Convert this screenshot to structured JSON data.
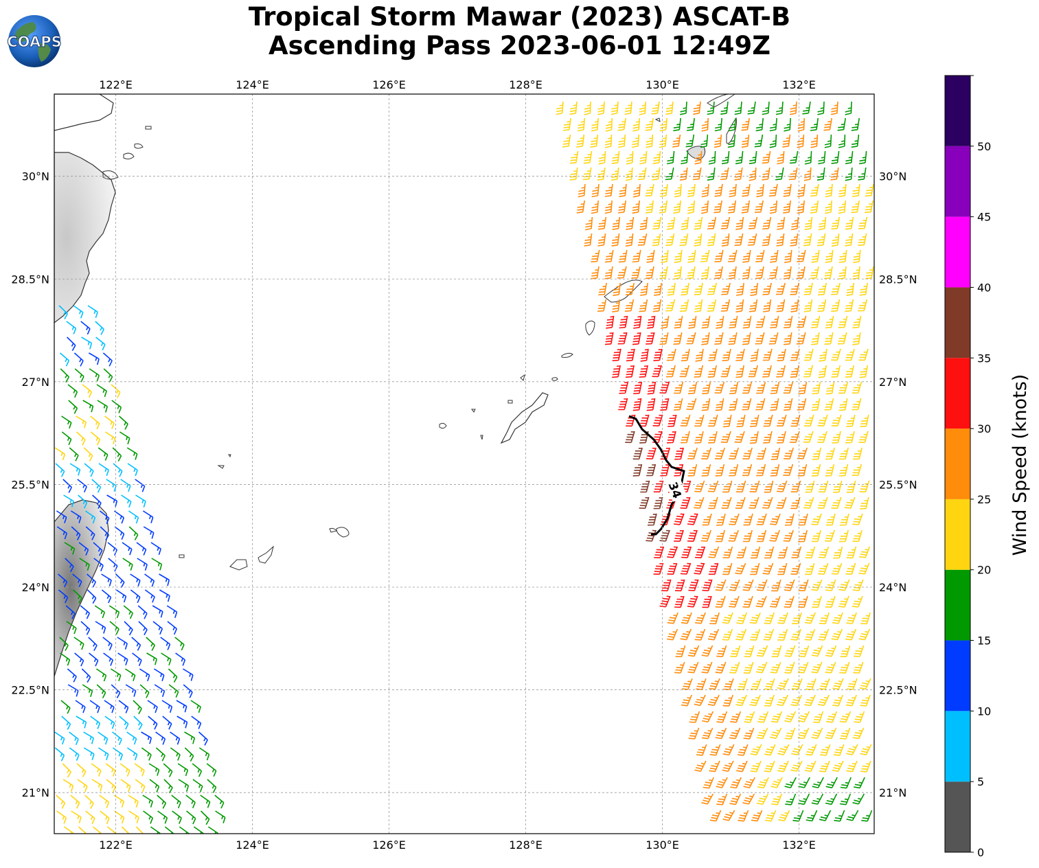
{
  "title": {
    "line1": "Tropical Storm Mawar (2023) ASCAT-B",
    "line2": "Ascending Pass 2023-06-01 12:49Z"
  },
  "logo_text": "COAPS",
  "map": {
    "lon_range": [
      121.1,
      133.1
    ],
    "lat_range": [
      20.4,
      31.2
    ],
    "x_ticks": [
      {
        "lon": 122,
        "label": "122°E"
      },
      {
        "lon": 124,
        "label": "124°E"
      },
      {
        "lon": 126,
        "label": "126°E"
      },
      {
        "lon": 128,
        "label": "128°E"
      },
      {
        "lon": 130,
        "label": "130°E"
      },
      {
        "lon": 132,
        "label": "132°E"
      }
    ],
    "y_ticks": [
      {
        "lat": 30,
        "label": "30°N"
      },
      {
        "lat": 28.5,
        "label": "28.5°N"
      },
      {
        "lat": 27,
        "label": "27°N"
      },
      {
        "lat": 25.5,
        "label": "25.5°N"
      },
      {
        "lat": 24,
        "label": "24°N"
      },
      {
        "lat": 22.5,
        "label": "22.5°N"
      },
      {
        "lat": 21,
        "label": "21°N"
      }
    ],
    "gridlines": true,
    "contour_label": "34",
    "contour_level_kt": 34
  },
  "colorbar": {
    "title": "Wind Speed (knots)",
    "bins": [
      {
        "min": 0,
        "max": 5,
        "color": "#555555"
      },
      {
        "min": 5,
        "max": 10,
        "color": "#00bfff"
      },
      {
        "min": 10,
        "max": 15,
        "color": "#003cff"
      },
      {
        "min": 15,
        "max": 20,
        "color": "#009900"
      },
      {
        "min": 20,
        "max": 25,
        "color": "#ffd511"
      },
      {
        "min": 25,
        "max": 30,
        "color": "#ff8c0a"
      },
      {
        "min": 30,
        "max": 35,
        "color": "#ff1010"
      },
      {
        "min": 35,
        "max": 40,
        "color": "#803a28"
      },
      {
        "min": 40,
        "max": 45,
        "color": "#ff00ff"
      },
      {
        "min": 45,
        "max": 50,
        "color": "#8800bb"
      },
      {
        "min": 50,
        "max": 55,
        "color": "#2b0060"
      }
    ],
    "tick_labels": [
      "0",
      "5",
      "10",
      "15",
      "20",
      "25",
      "30",
      "35",
      "40",
      "45",
      "50"
    ]
  }
}
